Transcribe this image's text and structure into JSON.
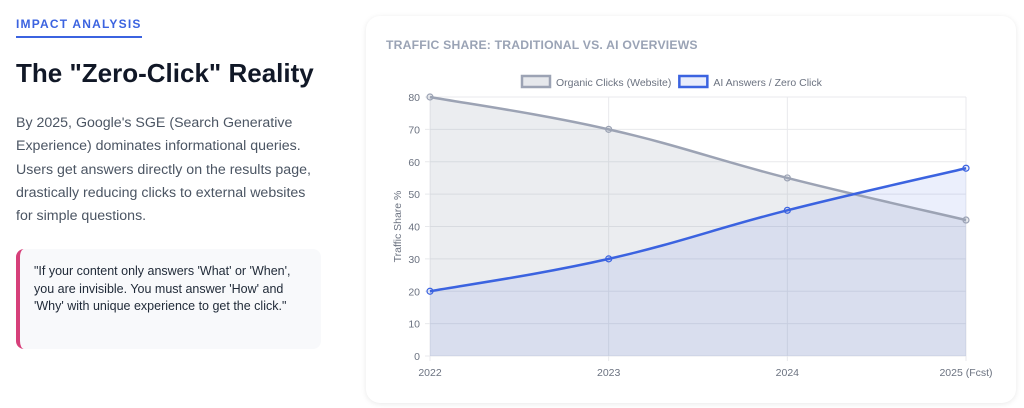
{
  "left": {
    "eyebrow": "IMPACT ANALYSIS",
    "title": "The \"Zero-Click\" Reality",
    "description": "By 2025, Google's SGE (Search Generative Experience) dominates informational queries. Users get answers directly on the results page, drastically reducing clicks to external websites for simple questions.",
    "quote": "\"If your content only answers 'What' or 'When', you are invisible. You must answer 'How' and 'Why' with unique experience to get the click.\""
  },
  "chart_data": {
    "type": "line",
    "title": "TRAFFIC SHARE: TRADITIONAL VS. AI OVERVIEWS",
    "categories": [
      "2022",
      "2023",
      "2024",
      "2025 (Fcst)"
    ],
    "ylabel": "Traffic Share %",
    "xlabel": "",
    "ylim": [
      0,
      80
    ],
    "yticks": [
      "0",
      "10",
      "20",
      "30",
      "40",
      "50",
      "60",
      "70",
      "80"
    ],
    "grid": true,
    "legend": "top",
    "series": [
      {
        "name": "Organic Clicks (Website)",
        "values": [
          80,
          70,
          55,
          42
        ],
        "color": "#9ca3b4",
        "fill": "rgba(156,163,180,0.2)"
      },
      {
        "name": "AI Answers / Zero Click",
        "values": [
          20,
          30,
          45,
          58
        ],
        "color": "#3b63e0",
        "fill": "rgba(59,99,224,0.1)"
      }
    ]
  }
}
